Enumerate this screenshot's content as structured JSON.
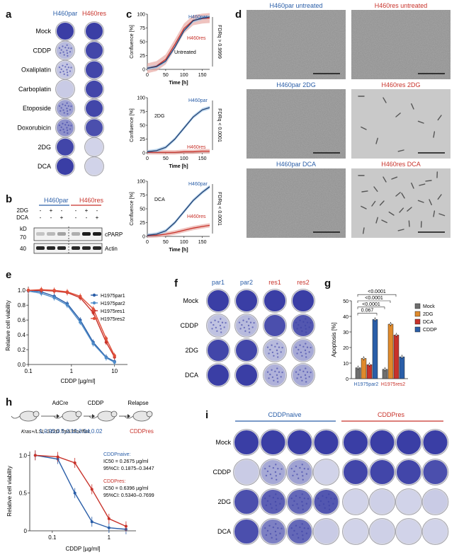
{
  "panels": {
    "a": "a",
    "b": "b",
    "c": "c",
    "d": "d",
    "e": "e",
    "f": "f",
    "g": "g",
    "h": "h",
    "i": "i"
  },
  "colors": {
    "blue": "#2a5ea8",
    "red": "#c8322a",
    "crystal_violet": "#3b3fa6",
    "micro": "#9a9a9a",
    "orange": "#e08a2b",
    "grey": "#6e6e6e"
  },
  "a": {
    "col_headers": [
      "H460par",
      "H460res"
    ],
    "rows": [
      "Mock",
      "CDDP",
      "Oxaliplatin",
      "Carboplatin",
      "Etoposide",
      "Doxorubicin",
      "2DG",
      "DCA"
    ],
    "stain_par": [
      1.0,
      0.25,
      0.18,
      0.15,
      0.4,
      0.5,
      0.95,
      1.0
    ],
    "stain_res": [
      1.0,
      0.95,
      0.95,
      0.95,
      0.95,
      0.9,
      0.1,
      0.1
    ]
  },
  "b": {
    "headers": [
      "H460par",
      "H460res"
    ],
    "row_labels": [
      "2DG",
      "DCA"
    ],
    "signs_2dg": [
      "-",
      "+",
      "-",
      "-",
      "+",
      "-"
    ],
    "signs_dca": [
      "-",
      "-",
      "+",
      "-",
      "-",
      "+"
    ],
    "kd_label": "kD",
    "markers": [
      "70",
      "40"
    ],
    "bands": [
      "cPARP",
      "Actin"
    ]
  },
  "c": {
    "xlabel": "Time [h]",
    "ylabel": "Confluence [%]",
    "xticks": [
      "0",
      "50",
      "100",
      "150"
    ],
    "yticks": [
      "0",
      "25",
      "50",
      "75",
      "100"
    ],
    "plots": [
      {
        "label": "Untreated",
        "par_label": "H460par",
        "res_label": "H460res",
        "fdr": "FDRq > 0.9999",
        "par": [
          2,
          5,
          15,
          40,
          70,
          88,
          93,
          95
        ],
        "res": [
          2,
          6,
          18,
          45,
          74,
          89,
          92,
          93
        ]
      },
      {
        "label": "2DG",
        "par_label": "H460par",
        "res_label": "H460res",
        "fdr": "FDRq < 0.0001",
        "par": [
          2,
          4,
          10,
          25,
          45,
          65,
          78,
          82
        ],
        "res": [
          1,
          1,
          1,
          1,
          2,
          2,
          3,
          3
        ]
      },
      {
        "label": "DCA",
        "par_label": "H460par",
        "res_label": "H460res",
        "fdr": "FDRq < 0.0001",
        "par": [
          2,
          4,
          10,
          25,
          45,
          65,
          80,
          90
        ],
        "res": [
          1,
          2,
          4,
          7,
          11,
          15,
          18,
          20
        ]
      }
    ],
    "x": [
      0,
      25,
      50,
      75,
      100,
      125,
      150,
      170
    ]
  },
  "d": {
    "titles": [
      [
        "H460par untreated",
        "H460res untreated"
      ],
      [
        "H460par 2DG",
        "H460res 2DG"
      ],
      [
        "H460par DCA",
        "H460res DCA"
      ]
    ]
  },
  "e": {
    "xlabel": "CDDP [µg/ml]",
    "ylabel": "Relative cell viability",
    "xticks": [
      "0.1",
      "1",
      "10"
    ],
    "yticks": [
      "0.0",
      "0.2",
      "0.4",
      "0.6",
      "0.8",
      "1.0"
    ],
    "legend": [
      "H1975par1",
      "H1975par2",
      "H1975res1",
      "H1975res2"
    ],
    "x": [
      0.1,
      0.2,
      0.4,
      0.8,
      1.6,
      3.2,
      6.4,
      10
    ],
    "series": [
      {
        "name": "H1975par1",
        "color": "#2a5ea8",
        "values": [
          1.0,
          0.98,
          0.92,
          0.82,
          0.6,
          0.3,
          0.1,
          0.04
        ]
      },
      {
        "name": "H1975par2",
        "color": "#4f8cc9",
        "values": [
          0.99,
          0.96,
          0.9,
          0.8,
          0.57,
          0.28,
          0.09,
          0.03
        ]
      },
      {
        "name": "H1975res1",
        "color": "#c8322a",
        "values": [
          1.0,
          1.0,
          0.99,
          0.97,
          0.9,
          0.7,
          0.3,
          0.1
        ]
      },
      {
        "name": "H1975res2",
        "color": "#e0503a",
        "values": [
          1.0,
          1.01,
          1.0,
          0.98,
          0.92,
          0.75,
          0.35,
          0.12
        ]
      }
    ]
  },
  "f": {
    "col_headers": [
      "par1",
      "par2",
      "res1",
      "res2"
    ],
    "rows": [
      "Mock",
      "CDDP",
      "2DG",
      "DCA"
    ],
    "stain": [
      [
        1,
        1,
        1,
        1
      ],
      [
        0.2,
        0.25,
        0.9,
        0.85
      ],
      [
        0.95,
        0.95,
        0.25,
        0.35
      ],
      [
        1,
        1,
        0.3,
        0.35
      ]
    ]
  },
  "g": {
    "ylabel": "Apoptosis [%]",
    "yticks": [
      "0",
      "10",
      "20",
      "30",
      "40",
      "50"
    ],
    "groups": [
      "H1975par2",
      "H1975res2"
    ],
    "legend": [
      "Mock",
      "2DG",
      "DCA",
      "CDDP"
    ],
    "values": [
      [
        7,
        13,
        9,
        38
      ],
      [
        6,
        35,
        28,
        14
      ]
    ],
    "pvalues": [
      "0.067",
      "<0.0001",
      "<0.0001",
      "<0.0001"
    ]
  },
  "h": {
    "schematic": [
      "AdCre",
      "CDDP",
      "Relapse"
    ],
    "mouse_label": "Kras+/LSL-G12D Trp53flox/flox",
    "naive": [
      1.0,
      0.95,
      0.5,
      0.12,
      0.04,
      0.02
    ],
    "res": "CDDPres",
    "xlabel": "CDDP [µg/ml]",
    "ylabel": "Relative cell viability",
    "xticks": [
      "0.1",
      "1"
    ],
    "yticks": [
      "0",
      "0.5",
      "1.0"
    ],
    "legend_naive": [
      "CDDPnaive:",
      "IC50 = 0.2675 µg/ml",
      "95%CI: 0.1875–0.3447"
    ],
    "legend_res": [
      "CDDPres:",
      "IC50 = 0.6396 µg/ml",
      "95%CI: 0.5340–0.7699"
    ],
    "x": [
      0.05,
      0.125,
      0.25,
      0.5,
      1,
      2
    ],
    "resv": [
      1.0,
      0.98,
      0.9,
      0.55,
      0.16,
      0.06
    ]
  },
  "i": {
    "headers": [
      "CDDPnaive",
      "CDDPres"
    ],
    "rows": [
      "Mock",
      "CDDP",
      "2DG",
      "DCA"
    ],
    "stain": [
      [
        1,
        1,
        1,
        1,
        1,
        1,
        1,
        1
      ],
      [
        0.15,
        0.35,
        0.4,
        0.1,
        0.95,
        0.95,
        0.95,
        0.9
      ],
      [
        0.9,
        0.8,
        0.75,
        0.85,
        0.1,
        0.12,
        0.1,
        0.15
      ],
      [
        0.9,
        0.6,
        0.75,
        0.15,
        0.1,
        0.12,
        0.1,
        0.1
      ]
    ]
  }
}
